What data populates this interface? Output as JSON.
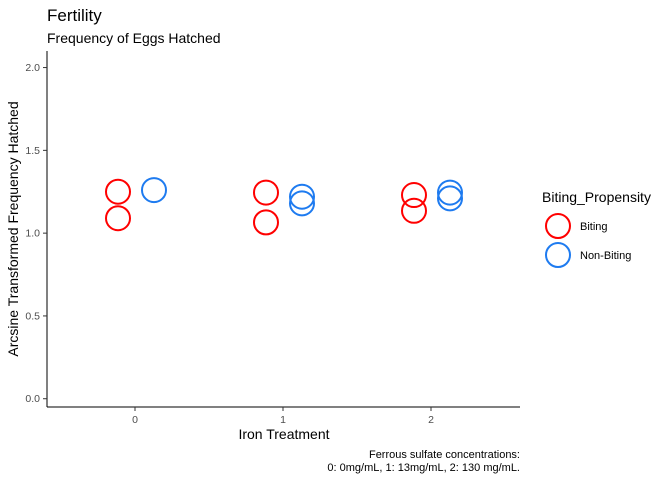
{
  "chart_data": {
    "type": "scatter",
    "title": "Fertility",
    "subtitle": "Frequency of Eggs Hatched",
    "xlabel": "Iron Treatment",
    "ylabel": "Arcsine Transformed Frequency Hatched",
    "caption": [
      "Ferrous sulfate concentrations:",
      "0: 0mg/mL, 1: 13mg/mL, 2: 130 mg/mL."
    ],
    "categories": [
      "0",
      "1",
      "2"
    ],
    "ylim": [
      -0.05,
      2.1
    ],
    "yticks": [
      0.0,
      0.5,
      1.0,
      1.5,
      2.0
    ],
    "ytick_labels": [
      "0.0",
      "0.5",
      "1.0",
      "1.5",
      "2.0"
    ],
    "grid": false,
    "legend": {
      "title": "Biting_Propensity",
      "placement": "right"
    },
    "series": [
      {
        "name": "Biting",
        "color": "#FF0000",
        "points": [
          {
            "x": "0",
            "y": 1.25
          },
          {
            "x": "0",
            "y": 1.09
          },
          {
            "x": "1",
            "y": 1.245
          },
          {
            "x": "1",
            "y": 1.065
          },
          {
            "x": "2",
            "y": 1.23
          },
          {
            "x": "2",
            "y": 1.135
          }
        ]
      },
      {
        "name": "Non-Biting",
        "color": "#1E7BF0",
        "points": [
          {
            "x": "0",
            "y": 1.26
          },
          {
            "x": "1",
            "y": 1.22
          },
          {
            "x": "1",
            "y": 1.18
          },
          {
            "x": "2",
            "y": 1.245
          },
          {
            "x": "2",
            "y": 1.21
          }
        ]
      }
    ]
  }
}
